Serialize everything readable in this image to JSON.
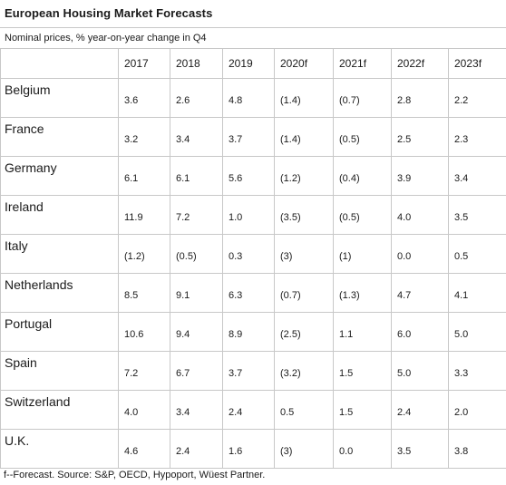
{
  "title": "European Housing Market Forecasts",
  "subtitle": "Nominal prices, % year-on-year change in Q4",
  "columns": [
    "2017",
    "2018",
    "2019",
    "2020f",
    "2021f",
    "2022f",
    "2023f"
  ],
  "rows": [
    {
      "country": "Belgium",
      "values": [
        "3.6",
        "2.6",
        "4.8",
        "(1.4)",
        "(0.7)",
        "2.8",
        "2.2"
      ]
    },
    {
      "country": "France",
      "values": [
        "3.2",
        "3.4",
        "3.7",
        "(1.4)",
        "(0.5)",
        "2.5",
        "2.3"
      ]
    },
    {
      "country": "Germany",
      "values": [
        "6.1",
        "6.1",
        "5.6",
        "(1.2)",
        "(0.4)",
        "3.9",
        "3.4"
      ]
    },
    {
      "country": "Ireland",
      "values": [
        "11.9",
        "7.2",
        "1.0",
        "(3.5)",
        "(0.5)",
        "4.0",
        "3.5"
      ]
    },
    {
      "country": "Italy",
      "values": [
        "(1.2)",
        "(0.5)",
        "0.3",
        "(3)",
        "(1)",
        "0.0",
        "0.5"
      ]
    },
    {
      "country": "Netherlands",
      "values": [
        "8.5",
        "9.1",
        "6.3",
        "(0.7)",
        "(1.3)",
        "4.7",
        "4.1"
      ]
    },
    {
      "country": "Portugal",
      "values": [
        "10.6",
        "9.4",
        "8.9",
        "(2.5)",
        "1.1",
        "6.0",
        "5.0"
      ]
    },
    {
      "country": "Spain",
      "values": [
        "7.2",
        "6.7",
        "3.7",
        "(3.2)",
        "1.5",
        "5.0",
        "3.3"
      ]
    },
    {
      "country": "Switzerland",
      "values": [
        "4.0",
        "3.4",
        "2.4",
        "0.5",
        "1.5",
        "2.4",
        "2.0"
      ]
    },
    {
      "country": "U.K.",
      "values": [
        "4.6",
        "2.4",
        "1.6",
        "(3)",
        "0.0",
        "3.5",
        "3.8"
      ]
    }
  ],
  "footnote": "f--Forecast. Source: S&P, OECD, Hypoport, Wüest Partner."
}
